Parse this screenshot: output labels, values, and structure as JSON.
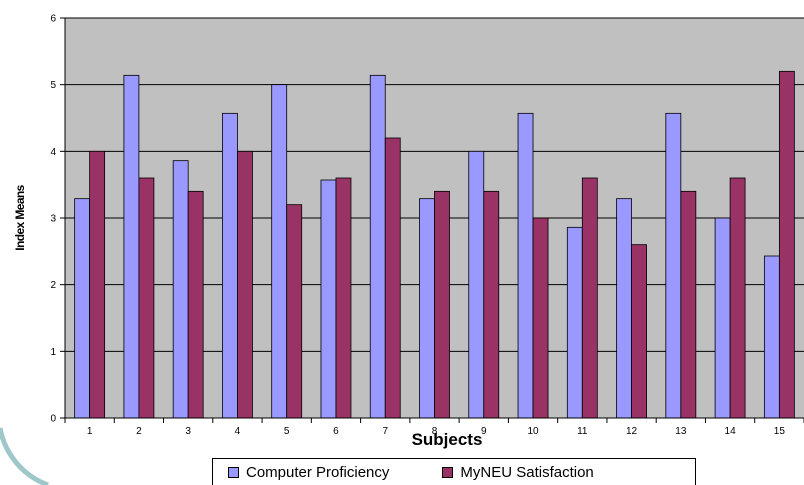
{
  "chart_data": {
    "type": "bar",
    "title": "",
    "xlabel": "Subjects",
    "ylabel": "Index Means",
    "ylim": [
      0,
      6
    ],
    "yticks": [
      "0",
      "1",
      "2",
      "3",
      "4",
      "5",
      "6"
    ],
    "grid": true,
    "legend_position": "bottom",
    "categories": [
      "1",
      "2",
      "3",
      "4",
      "5",
      "6",
      "7",
      "8",
      "9",
      "10",
      "11",
      "12",
      "13",
      "14",
      "15"
    ],
    "series": [
      {
        "name": "Computer Proficiency",
        "color": "#9999ff",
        "values": [
          3.29,
          5.14,
          3.86,
          4.57,
          5.0,
          3.57,
          5.14,
          3.29,
          4.0,
          4.57,
          2.86,
          3.29,
          4.57,
          3.0,
          2.43
        ]
      },
      {
        "name": "MyNEU Satisfaction",
        "color": "#993366",
        "values": [
          4.0,
          3.6,
          3.4,
          4.0,
          3.2,
          3.6,
          4.2,
          3.4,
          3.4,
          3.0,
          3.6,
          2.6,
          3.4,
          3.6,
          5.2
        ]
      }
    ],
    "plot_background": "#c0c0c0"
  }
}
